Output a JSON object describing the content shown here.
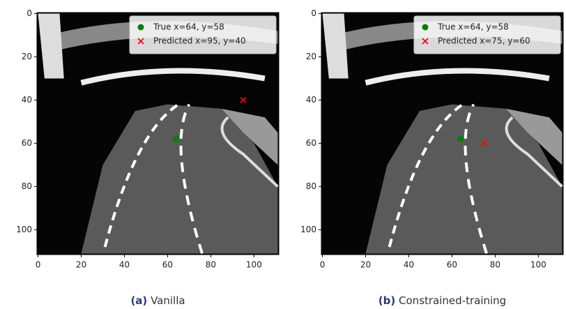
{
  "chart_data": [
    {
      "type": "scatter",
      "caption_label": "(a)",
      "caption": "Vanilla",
      "xlim": [
        -0.5,
        111.5
      ],
      "ylim": [
        111.5,
        -0.5
      ],
      "xticks": [
        0,
        20,
        40,
        60,
        80,
        100
      ],
      "yticks": [
        0,
        20,
        40,
        60,
        80,
        100
      ],
      "legend": "upper right",
      "series": [
        {
          "name": "True x=64, y=58",
          "color": "#008000",
          "marker": "o",
          "x": [
            64
          ],
          "y": [
            58
          ]
        },
        {
          "name": "Predicted x=95, y=40",
          "color": "#ff0000",
          "marker": "x",
          "x": [
            95
          ],
          "y": [
            40
          ]
        }
      ]
    },
    {
      "type": "scatter",
      "caption_label": "(b)",
      "caption": "Constrained-training",
      "xlim": [
        -0.5,
        111.5
      ],
      "ylim": [
        111.5,
        -0.5
      ],
      "xticks": [
        0,
        20,
        40,
        60,
        80,
        100
      ],
      "yticks": [
        0,
        20,
        40,
        60,
        80,
        100
      ],
      "legend": "upper right",
      "series": [
        {
          "name": "True x=64, y=58",
          "color": "#008000",
          "marker": "o",
          "x": [
            64
          ],
          "y": [
            58
          ]
        },
        {
          "name": "Predicted x=75, y=60",
          "color": "#ff0000",
          "marker": "x",
          "x": [
            75
          ],
          "y": [
            60
          ]
        }
      ]
    }
  ]
}
